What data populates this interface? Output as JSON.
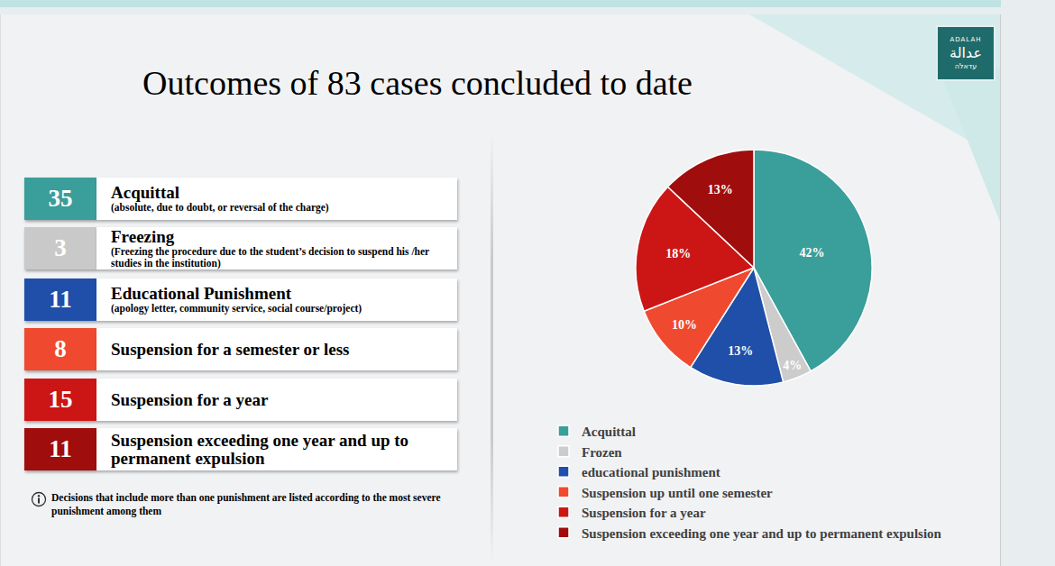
{
  "chart_data": {
    "type": "pie",
    "title": "Outcomes of 83 cases concluded to date",
    "categories": [
      "Acquittal",
      "Frozen",
      "educational punishment",
      "Suspension up until one semester",
      "Suspension for a year",
      "Suspension exceeding one year and up to permanent expulsion"
    ],
    "values": [
      42,
      4,
      13,
      10,
      18,
      13
    ],
    "value_labels": [
      "42%",
      "4%",
      "13%",
      "10%",
      "18%",
      "13%"
    ],
    "colors": [
      "#3a9e9a",
      "#cccccc",
      "#1f4fa8",
      "#ef4a2f",
      "#cc1616",
      "#a00d0d"
    ],
    "data_labels": true,
    "legend": "bottom"
  },
  "cases": [
    {
      "count": 35,
      "label": "Acquittal",
      "note": "(absolute, due to doubt, or reversal of the charge)",
      "color": "#3a9e9a"
    },
    {
      "count": 3,
      "label": "Freezing",
      "note": "(Freezing the procedure due to the student’s decision to suspend his /her studies in the institution)",
      "color": "#c9c9c9"
    },
    {
      "count": 11,
      "label": "Educational Punishment",
      "note": "(apology letter, community service, social course/project)",
      "color": "#1f4fa8"
    },
    {
      "count": 8,
      "label": "Suspension for a semester or less",
      "note": null,
      "color": "#ef4a2f"
    },
    {
      "count": 15,
      "label": "Suspension for a year",
      "note": null,
      "color": "#cc1616"
    },
    {
      "count": 11,
      "label": "Suspension exceeding one year and up to permanent expulsion",
      "note": null,
      "color": "#a00d0d"
    }
  ],
  "footnote": "Decisions that include more than one punishment are listed according to the most severe punishment among them",
  "logo": [
    "ADALAH",
    "عدالة",
    "עדאלה"
  ]
}
